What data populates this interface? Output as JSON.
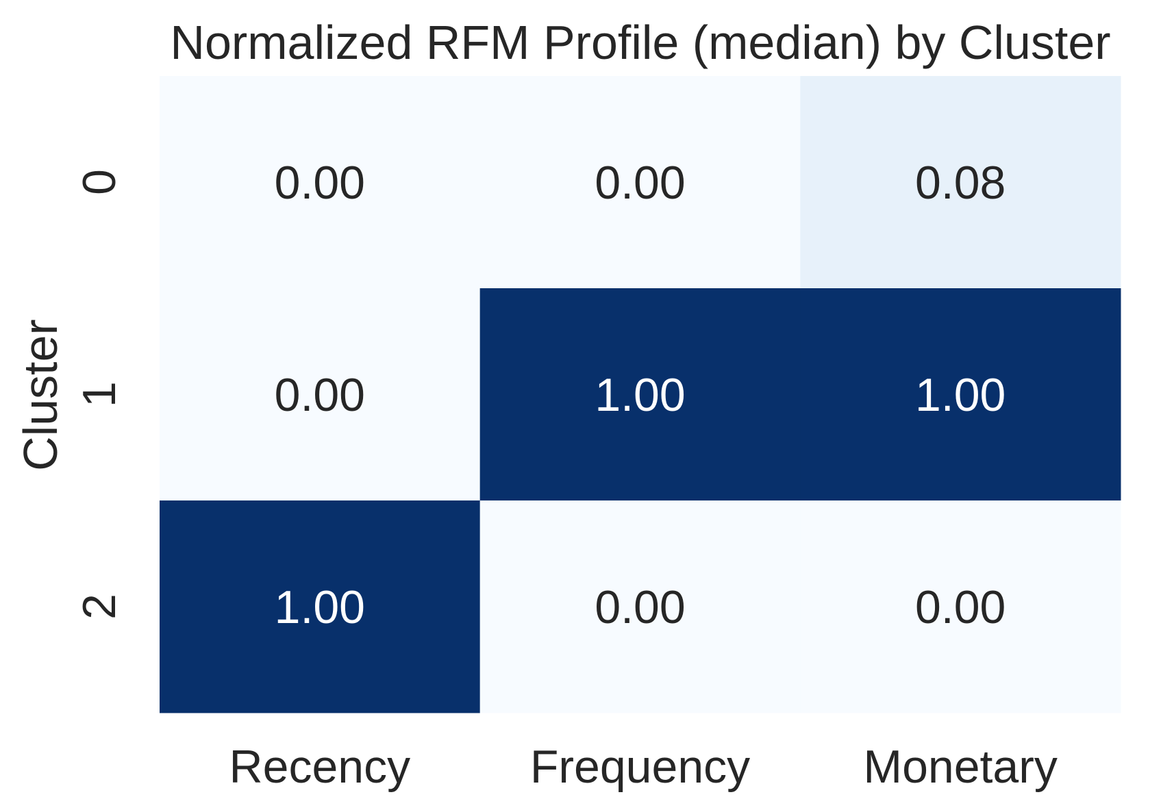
{
  "chart_data": {
    "type": "heatmap",
    "title": "Normalized RFM Profile (median) by Cluster",
    "xlabel": "",
    "ylabel": "Cluster",
    "x_categories": [
      "Recency",
      "Frequency",
      "Monetary"
    ],
    "y_categories": [
      "0",
      "1",
      "2"
    ],
    "values": [
      [
        0.0,
        0.0,
        0.08
      ],
      [
        0.0,
        1.0,
        1.0
      ],
      [
        1.0,
        0.0,
        0.0
      ]
    ],
    "value_format": "0.00",
    "value_range": [
      0,
      1
    ],
    "colormap": "Blues",
    "colorbar": false,
    "grid": false,
    "colors": {
      "low": "#f7fbff",
      "high": "#08306b",
      "text_dark": "#262626",
      "text_light": "#ffffff"
    }
  }
}
